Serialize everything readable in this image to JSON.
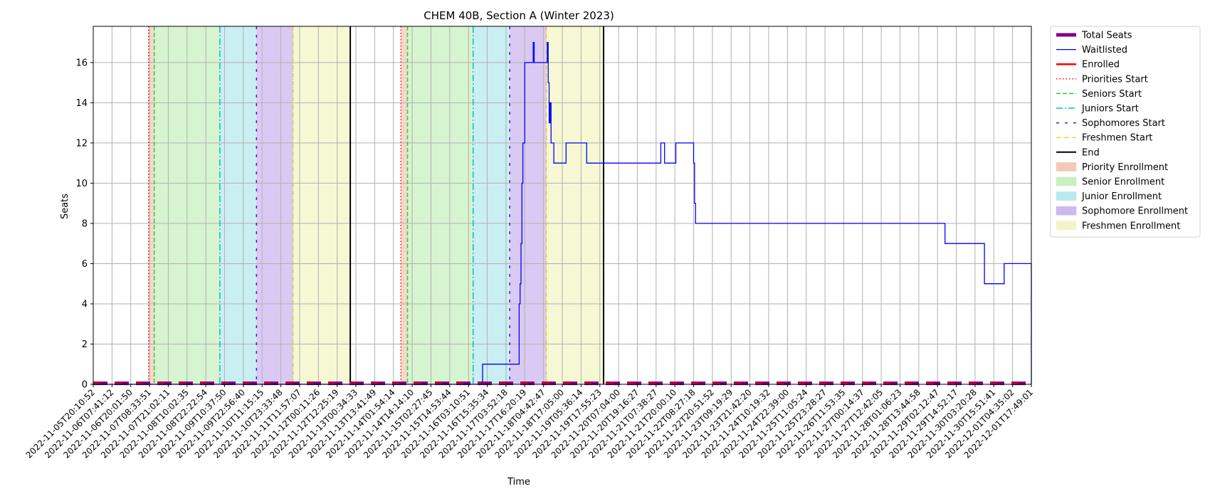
{
  "chart_data": {
    "type": "line",
    "title": "CHEM 40B, Section A (Winter 2023)",
    "xlabel": "Time",
    "ylabel": "Seats",
    "ylim": [
      0,
      17.8
    ],
    "yticks": [
      0,
      2,
      4,
      6,
      8,
      10,
      12,
      14,
      16
    ],
    "grid": true,
    "legend_position": "outside-right-top",
    "x_tick_labels": [
      "2022-11-05T20:10:52",
      "2022-11-06T07:41:12",
      "2022-11-06T20:01:50",
      "2022-11-07T08:33:51",
      "2022-11-07T21:02:11",
      "2022-11-08T10:02:35",
      "2022-11-08T22:22:54",
      "2022-11-09T10:37:50",
      "2022-11-09T22:56:40",
      "2022-11-10T11:15:15",
      "2022-11-10T23:33:48",
      "2022-11-11T11:57:07",
      "2022-11-12T00:11:26",
      "2022-11-12T12:25:19",
      "2022-11-13T00:34:33",
      "2022-11-13T13:41:49",
      "2022-11-14T01:54:14",
      "2022-11-14T14:14:10",
      "2022-11-15T02:27:45",
      "2022-11-15T14:53:44",
      "2022-11-16T03:10:51",
      "2022-11-16T15:35:34",
      "2022-11-17T03:52:18",
      "2022-11-17T16:20:19",
      "2022-11-18T04:42:47",
      "2022-11-18T17:05:00",
      "2022-11-19T05:36:14",
      "2022-11-19T17:55:23",
      "2022-11-20T07:04:00",
      "2022-11-20T19:16:27",
      "2022-11-21T07:38:27",
      "2022-11-21T20:00:10",
      "2022-11-22T08:27:18",
      "2022-11-22T20:51:52",
      "2022-11-23T09:19:29",
      "2022-11-23T21:42:20",
      "2022-11-24T10:19:32",
      "2022-11-24T22:39:00",
      "2022-11-25T11:05:24",
      "2022-11-25T23:28:27",
      "2022-11-26T11:53:35",
      "2022-11-27T00:14:37",
      "2022-11-27T12:42:05",
      "2022-11-28T01:06:23",
      "2022-11-28T13:44:58",
      "2022-11-29T02:12:47",
      "2022-11-29T14:52:17",
      "2022-11-30T03:20:28",
      "2022-11-30T15:51:41",
      "2022-12-01T04:35:02",
      "2022-12-01T17:49:01"
    ],
    "x_domain": [
      0,
      1000
    ],
    "legend": [
      {
        "label": "Total Seats",
        "kind": "thick-line",
        "color": "#800080"
      },
      {
        "label": "Waitlisted",
        "kind": "line",
        "color": "#0000ff"
      },
      {
        "label": "Enrolled",
        "kind": "line-bold",
        "color": "#ff0000"
      },
      {
        "label": "Priorities Start",
        "kind": "dotted",
        "color": "#ff0000"
      },
      {
        "label": "Seniors Start",
        "kind": "dashed",
        "color": "#32cd32"
      },
      {
        "label": "Juniors Start",
        "kind": "dashdot",
        "color": "#00bfbf"
      },
      {
        "label": "Sophomores Start",
        "kind": "sparse-dash",
        "color": "#4b0fd8"
      },
      {
        "label": "Freshmen Start",
        "kind": "dashdot-thin",
        "color": "#e6c800"
      },
      {
        "label": "End",
        "kind": "solid",
        "color": "#000000"
      },
      {
        "label": "Priority Enrollment",
        "kind": "patch",
        "color": "#f4c9b8"
      },
      {
        "label": "Senior Enrollment",
        "kind": "patch",
        "color": "#c8f0c0"
      },
      {
        "label": "Junior Enrollment",
        "kind": "patch",
        "color": "#b8eaef"
      },
      {
        "label": "Sophomore Enrollment",
        "kind": "patch",
        "color": "#cdb8ef"
      },
      {
        "label": "Freshmen Enrollment",
        "kind": "patch",
        "color": "#f3f5c6"
      }
    ],
    "spans": [
      {
        "kind": "priority",
        "x0": 59,
        "x1": 65
      },
      {
        "kind": "senior",
        "x0": 65,
        "x1": 135
      },
      {
        "kind": "junior",
        "x0": 135,
        "x1": 174
      },
      {
        "kind": "sophomore",
        "x0": 174,
        "x1": 213
      },
      {
        "kind": "freshmen",
        "x0": 213,
        "x1": 274
      },
      {
        "kind": "priority",
        "x0": 328,
        "x1": 335
      },
      {
        "kind": "senior",
        "x0": 335,
        "x1": 405
      },
      {
        "kind": "junior",
        "x0": 405,
        "x1": 444
      },
      {
        "kind": "sophomore",
        "x0": 444,
        "x1": 483
      },
      {
        "kind": "freshmen",
        "x0": 483,
        "x1": 544
      }
    ],
    "vlines": [
      {
        "kind": "priorities",
        "x": 59
      },
      {
        "kind": "seniors",
        "x": 65
      },
      {
        "kind": "juniors",
        "x": 135
      },
      {
        "kind": "sophomores",
        "x": 174
      },
      {
        "kind": "freshmen",
        "x": 213
      },
      {
        "kind": "end",
        "x": 274
      },
      {
        "kind": "priorities",
        "x": 328
      },
      {
        "kind": "seniors",
        "x": 335
      },
      {
        "kind": "juniors",
        "x": 405
      },
      {
        "kind": "sophomores",
        "x": 444
      },
      {
        "kind": "freshmen",
        "x": 483
      },
      {
        "kind": "end",
        "x": 544
      }
    ],
    "series": [
      {
        "name": "Total Seats",
        "color": "#800080",
        "points": [
          [
            0,
            0.05
          ],
          [
            1000,
            0.05
          ]
        ]
      },
      {
        "name": "Enrolled",
        "color": "#ff0000",
        "points": [
          [
            0,
            0.05
          ],
          [
            1000,
            0.05
          ]
        ]
      },
      {
        "name": "Waitlisted",
        "color": "#0000ff",
        "points": [
          [
            0,
            0
          ],
          [
            415,
            0
          ],
          [
            415,
            1
          ],
          [
            454,
            1
          ],
          [
            454,
            4
          ],
          [
            455,
            4
          ],
          [
            455,
            5
          ],
          [
            456,
            5
          ],
          [
            456,
            7
          ],
          [
            457,
            7
          ],
          [
            457,
            10
          ],
          [
            458,
            10
          ],
          [
            458,
            12
          ],
          [
            460,
            12
          ],
          [
            460,
            16
          ],
          [
            469,
            16
          ],
          [
            469,
            17
          ],
          [
            470,
            17
          ],
          [
            470,
            16
          ],
          [
            484,
            16
          ],
          [
            484,
            17
          ],
          [
            485,
            17
          ],
          [
            485,
            15
          ],
          [
            486,
            15
          ],
          [
            486,
            13
          ],
          [
            487,
            13
          ],
          [
            487,
            14
          ],
          [
            488,
            14
          ],
          [
            488,
            12
          ],
          [
            491,
            12
          ],
          [
            491,
            11
          ],
          [
            504,
            11
          ],
          [
            504,
            12
          ],
          [
            526,
            12
          ],
          [
            526,
            11
          ],
          [
            605,
            11
          ],
          [
            605,
            12
          ],
          [
            609,
            12
          ],
          [
            609,
            11
          ],
          [
            621,
            11
          ],
          [
            621,
            12
          ],
          [
            640,
            12
          ],
          [
            640,
            11
          ],
          [
            641,
            11
          ],
          [
            641,
            9
          ],
          [
            642,
            9
          ],
          [
            642,
            8
          ],
          [
            908,
            8
          ],
          [
            908,
            7
          ],
          [
            950,
            7
          ],
          [
            950,
            5
          ],
          [
            971,
            5
          ],
          [
            971,
            6
          ],
          [
            1000,
            6
          ],
          [
            1000,
            0
          ]
        ]
      }
    ]
  }
}
